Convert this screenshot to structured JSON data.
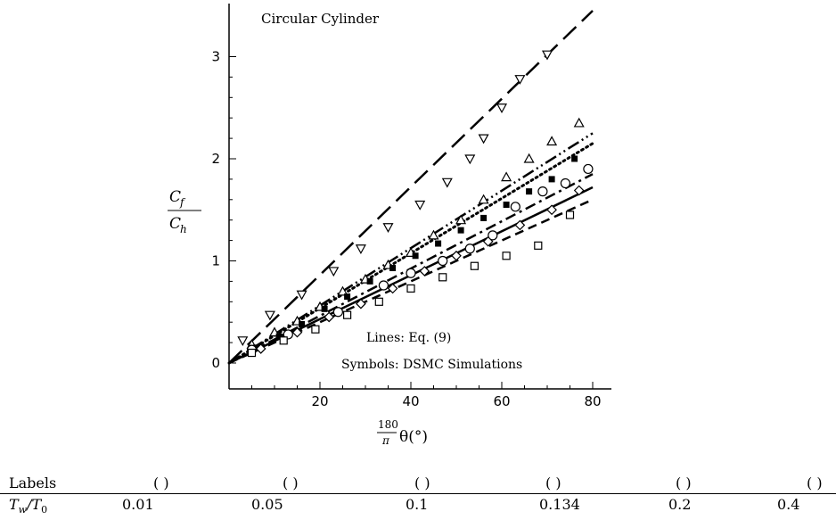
{
  "chart_data": {
    "type": "scatter",
    "title": "Circular Cylinder",
    "xlabel": "180/π θ(°)",
    "xlabel_parts": {
      "frac_num": "180",
      "frac_den": "π",
      "var": "θ(°)"
    },
    "ylabel": "Cf / Ch",
    "ylabel_parts": {
      "num": "C_f",
      "den": "C_h"
    },
    "xlim": [
      0,
      82
    ],
    "ylim": [
      -0.25,
      3.5
    ],
    "xticks": [
      20,
      40,
      60,
      80
    ],
    "yticks": [
      0,
      1,
      2,
      3
    ],
    "grid": false,
    "annotations": [
      "Lines: Eq. (9)",
      "Symbols: DSMC Simulations"
    ],
    "series": [
      {
        "marker": "triangle-down",
        "line_style": "long-dash",
        "x": [
          3,
          9,
          16,
          23,
          29,
          35,
          42,
          48,
          53,
          56,
          60,
          64,
          70
        ],
        "y": [
          0.22,
          0.47,
          0.67,
          0.9,
          1.12,
          1.33,
          1.55,
          1.77,
          2.0,
          2.2,
          2.5,
          2.78,
          3.02
        ],
        "line_end": 3.45
      },
      {
        "marker": "triangle-up",
        "line_style": "dash-dot-dot",
        "x": [
          5,
          10,
          15,
          20,
          25,
          30,
          35,
          40,
          45,
          51,
          56,
          61,
          66,
          71,
          77
        ],
        "y": [
          0.18,
          0.3,
          0.41,
          0.55,
          0.7,
          0.82,
          0.96,
          1.08,
          1.25,
          1.4,
          1.6,
          1.82,
          2.0,
          2.17,
          2.35
        ],
        "line_end": 2.25
      },
      {
        "marker": "filled-square",
        "line_style": "dotted",
        "x": [
          6,
          11,
          16,
          21,
          26,
          31,
          36,
          41,
          46,
          51,
          56,
          61,
          66,
          71,
          76
        ],
        "y": [
          0.15,
          0.26,
          0.38,
          0.53,
          0.65,
          0.8,
          0.93,
          1.05,
          1.17,
          1.3,
          1.42,
          1.55,
          1.68,
          1.8,
          2.0
        ],
        "line_end": 2.15
      },
      {
        "marker": "circle",
        "line_style": "dash-dot",
        "x": [
          5,
          13,
          24,
          34,
          40,
          47,
          53,
          58,
          63,
          69,
          74,
          79
        ],
        "y": [
          0.13,
          0.28,
          0.5,
          0.76,
          0.88,
          1.0,
          1.12,
          1.25,
          1.53,
          1.68,
          1.76,
          1.9
        ],
        "line_end": 1.85
      },
      {
        "marker": "diamond",
        "line_style": "solid",
        "x": [
          7,
          15,
          22,
          29,
          36,
          43,
          50,
          57,
          64,
          71,
          77
        ],
        "y": [
          0.14,
          0.3,
          0.45,
          0.58,
          0.73,
          0.9,
          1.05,
          1.19,
          1.35,
          1.5,
          1.69
        ],
        "line_end": 1.72
      },
      {
        "marker": "square",
        "line_style": "short-dash",
        "x": [
          5,
          12,
          19,
          26,
          33,
          40,
          47,
          54,
          61,
          68,
          75
        ],
        "y": [
          0.1,
          0.22,
          0.33,
          0.47,
          0.6,
          0.73,
          0.84,
          0.95,
          1.05,
          1.15,
          1.45
        ],
        "line_end": 1.6
      }
    ]
  },
  "table": {
    "row1_header": "Labels",
    "row2_header": "T_w/T_0",
    "paren": "( )",
    "values": [
      "0.01",
      "0.05",
      "0.1",
      "0.134",
      "0.2",
      "0.4"
    ]
  }
}
